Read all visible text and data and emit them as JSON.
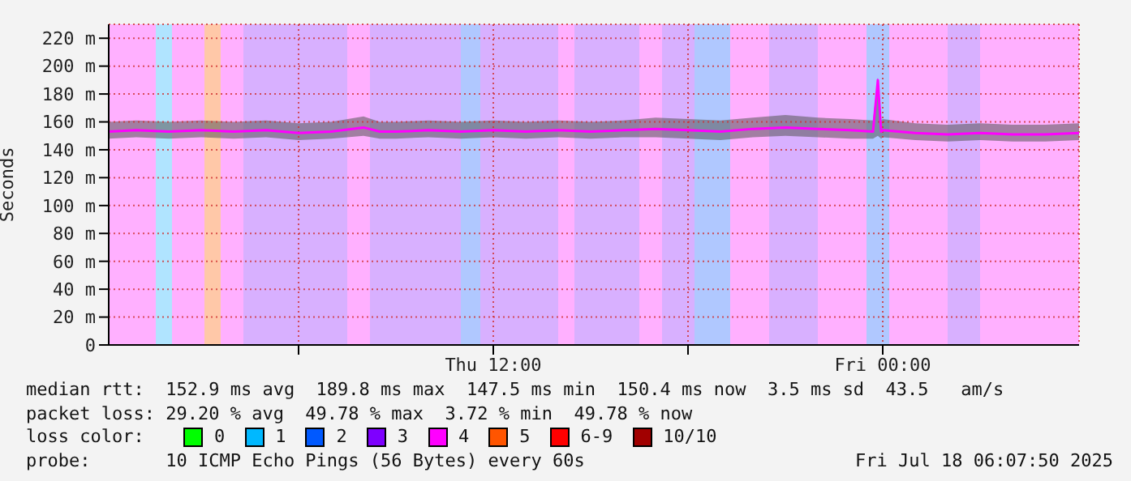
{
  "chart_data": {
    "type": "line",
    "ylabel": "Seconds",
    "x": [
      "2025-07-17T00:09",
      "2025-07-17T01:00",
      "2025-07-17T02:00",
      "2025-07-17T03:00",
      "2025-07-17T04:00",
      "2025-07-17T05:00",
      "2025-07-17T06:00",
      "2025-07-17T07:00",
      "2025-07-17T08:00",
      "2025-07-17T08:30",
      "2025-07-17T09:00",
      "2025-07-17T10:00",
      "2025-07-17T11:00",
      "2025-07-17T12:00",
      "2025-07-17T13:00",
      "2025-07-17T14:00",
      "2025-07-17T15:00",
      "2025-07-17T16:00",
      "2025-07-17T17:00",
      "2025-07-17T18:00",
      "2025-07-17T19:00",
      "2025-07-17T20:00",
      "2025-07-17T21:00",
      "2025-07-17T22:00",
      "2025-07-17T23:00",
      "2025-07-17T23:42",
      "2025-07-17T23:51",
      "2025-07-17T23:57",
      "2025-07-18T00:00",
      "2025-07-18T01:00",
      "2025-07-18T02:00",
      "2025-07-18T03:00",
      "2025-07-18T04:00",
      "2025-07-18T05:00",
      "2025-07-18T06:03"
    ],
    "series": [
      {
        "color": "#ff00ff",
        "values": [
          153,
          154,
          153,
          154,
          153,
          154,
          152,
          153,
          156,
          153,
          153,
          154,
          153,
          154,
          153,
          154,
          153,
          154,
          155,
          154,
          153,
          155,
          156,
          155,
          154,
          153,
          190,
          153,
          154,
          152,
          151,
          152,
          151,
          151,
          152
        ],
        "lower": [
          148,
          149,
          148,
          149,
          148,
          149,
          147,
          148,
          150,
          148,
          148,
          149,
          148,
          149,
          148,
          149,
          148,
          149,
          149,
          148,
          147,
          149,
          150,
          149,
          148,
          148,
          150,
          148,
          149,
          147,
          146,
          147,
          146,
          146,
          147
        ],
        "upper": [
          160,
          161,
          160,
          161,
          160,
          161,
          159,
          160,
          164,
          160,
          160,
          161,
          160,
          161,
          160,
          161,
          160,
          161,
          163,
          162,
          161,
          163,
          165,
          163,
          162,
          161,
          192,
          161,
          162,
          159,
          158,
          159,
          158,
          158,
          159
        ]
      },
      {
        "name": "0",
        "color": "#00ff00",
        "values": [
          null,
          null,
          null,
          null,
          null,
          null,
          null,
          null,
          null,
          null,
          null,
          null,
          null,
          null,
          null,
          null,
          null,
          null,
          null,
          null,
          null,
          null,
          null,
          null,
          null,
          null,
          null,
          null,
          null,
          null,
          null,
          null,
          null,
          null,
          null
        ]
      },
      {
        "name": "1",
        "color": "#00b8ff",
        "values": [
          null,
          null,
          null,
          null,
          null,
          null,
          null,
          null,
          null,
          null,
          null,
          null,
          null,
          null,
          null,
          null,
          null,
          null,
          null,
          null,
          null,
          null,
          null,
          null,
          null,
          null,
          null,
          null,
          null,
          null,
          null,
          null,
          null,
          null,
          null
        ]
      },
      {
        "name": "2",
        "color": "#0059ff",
        "values": [
          null,
          null,
          null,
          null,
          null,
          null,
          null,
          null,
          null,
          null,
          null,
          null,
          null,
          null,
          null,
          null,
          null,
          null,
          null,
          null,
          null,
          null,
          null,
          null,
          null,
          null,
          null,
          null,
          null,
          null,
          null,
          null,
          null,
          null,
          null
        ]
      },
      {
        "name": "3",
        "color": "#7e00ff",
        "values": [
          null,
          null,
          null,
          null,
          null,
          null,
          null,
          null,
          null,
          null,
          null,
          null,
          null,
          null,
          null,
          null,
          null,
          null,
          null,
          null,
          null,
          null,
          null,
          null,
          null,
          null,
          null,
          null,
          null,
          null,
          null,
          null,
          null,
          null,
          null
        ]
      },
      {
        "name": "4",
        "color": "#ff00ff",
        "values": [
          null,
          null,
          null,
          null,
          null,
          null,
          null,
          null,
          null,
          null,
          null,
          null,
          null,
          null,
          null,
          null,
          null,
          null,
          null,
          null,
          null,
          null,
          null,
          null,
          null,
          null,
          null,
          null,
          null,
          null,
          null,
          null,
          null,
          null,
          null
        ]
      },
      {
        "name": "5",
        "color": "#ff5500",
        "values": [
          null,
          null,
          null,
          null,
          null,
          null,
          null,
          null,
          null,
          null,
          null,
          null,
          null,
          null,
          null,
          null,
          null,
          null,
          null,
          null,
          null,
          null,
          null,
          null,
          null,
          null,
          null,
          null,
          null,
          null,
          null,
          null,
          null,
          null,
          null
        ]
      },
      {
        "name": "6-9",
        "color": "#ff0000",
        "values": [
          null,
          null,
          null,
          null,
          null,
          null,
          null,
          null,
          null,
          null,
          null,
          null,
          null,
          null,
          null,
          null,
          null,
          null,
          null,
          null,
          null,
          null,
          null,
          null,
          null,
          null,
          null,
          null,
          null,
          null,
          null,
          null,
          null,
          null,
          null
        ]
      },
      {
        "name": "10/10",
        "color": "#a10000",
        "values": [
          null,
          null,
          null,
          null,
          null,
          null,
          null,
          null,
          null,
          null,
          null,
          null,
          null,
          null,
          null,
          null,
          null,
          null,
          null,
          null,
          null,
          null,
          null,
          null,
          null,
          null,
          null,
          null,
          null,
          null,
          null,
          null,
          null,
          null,
          null
        ]
      }
    ],
    "xlim": [
      "2025-07-17T00:09",
      "2025-07-18T06:03"
    ],
    "xticks": [
      {
        "value": "2025-07-17T06:00",
        "label": null
      },
      {
        "value": "2025-07-17T12:00",
        "label": "Thu 12:00"
      },
      {
        "value": "2025-07-17T18:00",
        "label": null
      },
      {
        "value": "2025-07-18T00:00",
        "label": "Fri 00:00"
      }
    ],
    "ylim": [
      0,
      230
    ],
    "yticks": [
      0,
      {
        "value": 20,
        "label": "20 m"
      },
      {
        "value": 40,
        "label": "40 m"
      },
      {
        "value": 60,
        "label": "60 m"
      },
      {
        "value": 80,
        "label": "80 m"
      },
      {
        "value": 100,
        "label": "100 m"
      },
      {
        "value": 120,
        "label": "120 m"
      },
      {
        "value": 140,
        "label": "140 m"
      },
      {
        "value": 160,
        "label": "160 m"
      },
      {
        "value": 180,
        "label": "180 m"
      },
      {
        "value": 200,
        "label": "200 m"
      },
      {
        "value": 220,
        "label": "220 m"
      }
    ],
    "grid": true,
    "legend": "bottom",
    "marker": "none",
    "line_style": "solid",
    "bands": [
      {
        "axis": "x",
        "from": "2025-07-17T00:09",
        "to": "2025-07-17T01:36",
        "color": "#ffb0ff"
      },
      {
        "axis": "x",
        "from": "2025-07-17T01:36",
        "to": "2025-07-17T02:06",
        "color": "#b0e4ff"
      },
      {
        "axis": "x",
        "from": "2025-07-17T02:06",
        "to": "2025-07-17T03:06",
        "color": "#ffb0ff"
      },
      {
        "axis": "x",
        "from": "2025-07-17T03:06",
        "to": "2025-07-17T03:36",
        "color": "#ffc8a8"
      },
      {
        "axis": "x",
        "from": "2025-07-17T03:36",
        "to": "2025-07-17T04:18",
        "color": "#ffb0ff"
      },
      {
        "axis": "x",
        "from": "2025-07-17T04:18",
        "to": "2025-07-17T07:30",
        "color": "#d8b0ff"
      },
      {
        "axis": "x",
        "from": "2025-07-17T07:30",
        "to": "2025-07-17T08:12",
        "color": "#ffb0ff"
      },
      {
        "axis": "x",
        "from": "2025-07-17T08:12",
        "to": "2025-07-17T11:00",
        "color": "#d8b0ff"
      },
      {
        "axis": "x",
        "from": "2025-07-17T11:00",
        "to": "2025-07-17T11:36",
        "color": "#b0c8ff"
      },
      {
        "axis": "x",
        "from": "2025-07-17T11:36",
        "to": "2025-07-17T14:00",
        "color": "#d8b0ff"
      },
      {
        "axis": "x",
        "from": "2025-07-17T14:00",
        "to": "2025-07-17T14:30",
        "color": "#ffb0ff"
      },
      {
        "axis": "x",
        "from": "2025-07-17T14:30",
        "to": "2025-07-17T16:30",
        "color": "#d8b0ff"
      },
      {
        "axis": "x",
        "from": "2025-07-17T16:30",
        "to": "2025-07-17T17:12",
        "color": "#ffb0ff"
      },
      {
        "axis": "x",
        "from": "2025-07-17T17:12",
        "to": "2025-07-17T18:12",
        "color": "#d8b0ff"
      },
      {
        "axis": "x",
        "from": "2025-07-17T18:12",
        "to": "2025-07-17T19:18",
        "color": "#b0c8ff"
      },
      {
        "axis": "x",
        "from": "2025-07-17T19:18",
        "to": "2025-07-17T20:30",
        "color": "#ffb0ff"
      },
      {
        "axis": "x",
        "from": "2025-07-17T20:30",
        "to": "2025-07-17T22:00",
        "color": "#d8b0ff"
      },
      {
        "axis": "x",
        "from": "2025-07-17T22:00",
        "to": "2025-07-17T23:30",
        "color": "#ffb0ff"
      },
      {
        "axis": "x",
        "from": "2025-07-17T23:30",
        "to": "2025-07-18T00:12",
        "color": "#b0c8ff"
      },
      {
        "axis": "x",
        "from": "2025-07-18T00:12",
        "to": "2025-07-18T02:00",
        "color": "#ffb0ff"
      },
      {
        "axis": "x",
        "from": "2025-07-18T02:00",
        "to": "2025-07-18T03:00",
        "color": "#d8b0ff"
      },
      {
        "axis": "x",
        "from": "2025-07-18T03:00",
        "to": "2025-07-18T06:03",
        "color": "#ffb0ff"
      }
    ],
    "annotations": [
      "median rtt:  152.9 ms avg  189.8 ms max  147.5 ms min  150.4 ms now  3.5 ms sd  43.5   am/s",
      "packet loss: 29.20 % avg  49.78 % max  3.72 % min  49.78 % now",
      "loss color:",
      "probe:       10 ICMP Echo Pings (56 Bytes) every 60s",
      "Fri Jul 18 06:07:50 2025"
    ]
  }
}
